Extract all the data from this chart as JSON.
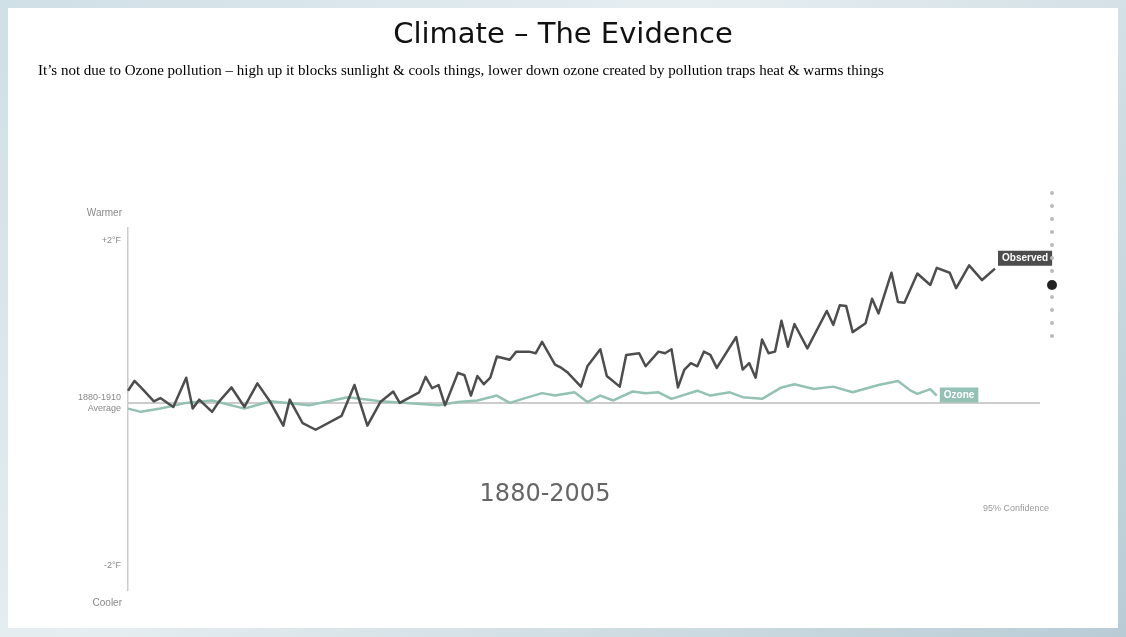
{
  "chart_data": {
    "type": "line",
    "title": "Climate – The Evidence",
    "subtitle": "It’s not due to Ozone pollution – high up it blocks sunlight & cools things, lower down ozone created by pollution traps heat & warms things",
    "ylabel": "Warmer",
    "annotations": [
      "1880-2005",
      "95% Confidence",
      "Cooler"
    ],
    "categories": [
      null,
      null,
      null,
      null,
      null,
      null,
      null,
      null,
      null,
      null,
      null,
      null,
      null,
      null,
      null,
      null,
      null,
      null,
      null,
      null,
      null,
      null,
      null,
      null,
      null,
      null,
      null,
      null,
      null,
      null,
      null,
      null,
      null,
      null,
      null,
      null,
      null,
      null,
      null,
      null,
      null,
      null,
      null,
      null,
      null,
      null,
      null,
      null,
      null,
      null,
      null,
      null,
      null,
      null,
      null,
      null,
      null,
      null,
      null,
      null,
      null,
      null,
      null,
      null,
      null,
      null,
      null,
      null,
      null,
      null,
      null,
      null,
      null,
      null,
      null,
      null,
      null,
      null,
      null,
      null,
      null,
      null,
      null,
      null,
      null,
      null,
      null,
      null,
      null,
      null,
      null,
      null,
      null,
      null,
      null,
      null,
      null,
      null,
      null,
      null,
      null,
      null,
      null,
      null,
      null,
      null,
      null,
      null,
      null,
      null,
      null,
      null,
      null,
      null,
      null,
      null,
      null,
      null,
      null,
      null,
      null,
      null,
      null,
      null,
      null,
      null,
      null,
      null,
      null,
      null,
      null,
      null,
      null,
      null,
      null
    ],
    "ylim": [
      -2.3,
      2.15
    ],
    "yticks": [
      {
        "value": 2,
        "label": "+2°F"
      },
      {
        "value": 0,
        "label": "1880-1910 Average"
      },
      {
        "value": -2,
        "label": "-2°F"
      }
    ],
    "tick_labels": "y",
    "grid": false,
    "legend": "right",
    "marker": "none",
    "line_style": "solid",
    "ref_lines": [
      {
        "axis": "y",
        "value": 0,
        "label": null,
        "color": "#bbbbbb"
      }
    ],
    "series": [
      {
        "name": "Observed",
        "color": "#4d4d4d",
        "values": [
          0.15,
          0.27,
          0.19,
          null,
          0.02,
          0.06,
          null,
          -0.05,
          null,
          0.31,
          -0.07,
          0.04,
          null,
          -0.11,
          0.01,
          null,
          0.19,
          null,
          -0.05,
          null,
          0.24,
          null,
          0.01,
          null,
          -0.28,
          0.04,
          null,
          -0.25,
          null,
          -0.33,
          null,
          null,
          null,
          -0.16,
          null,
          0.22,
          null,
          -0.28,
          null,
          0.01,
          null,
          0.14,
          0,
          null,
          null,
          0.13,
          0.32,
          0.18,
          0.22,
          -0.03,
          null,
          0.37,
          0.34,
          0.09,
          0.33,
          0.23,
          0.31,
          0.57,
          null,
          0.53,
          0.63,
          null,
          0.63,
          0.61,
          0.75,
          null,
          0.47,
          0.43,
          0.37,
          null,
          0.2,
          0.45,
          null,
          0.66,
          0.33,
          null,
          0.2,
          0.59,
          null,
          0.61,
          0.45,
          null,
          0.63,
          0.61,
          0.66,
          0.19,
          0.41,
          0.49,
          0.45,
          0.63,
          0.59,
          0.43,
          null,
          null,
          0.81,
          0.41,
          0.49,
          0.31,
          0.78,
          0.61,
          0.63,
          1.01,
          0.69,
          0.97,
          null,
          0.67,
          null,
          null,
          1.13,
          0.96,
          1.2,
          1.19,
          0.87,
          null,
          0.98,
          1.28,
          1.1,
          null,
          1.6,
          1.24,
          1.23,
          null,
          1.59,
          null,
          1.45,
          1.66,
          null,
          1.6,
          1.41,
          null,
          1.69,
          null,
          1.51,
          null,
          1.65
        ]
      },
      {
        "name": "Ozone",
        "color": "#93c2b4",
        "values": [
          -0.07,
          null,
          -0.11,
          null,
          null,
          -0.07,
          null,
          null,
          null,
          0,
          null,
          null,
          null,
          0.03,
          null,
          null,
          null,
          null,
          -0.07,
          null,
          null,
          null,
          0.02,
          null,
          null,
          null,
          null,
          null,
          -0.03,
          null,
          null,
          null,
          null,
          null,
          0.07,
          null,
          null,
          null,
          null,
          0.02,
          null,
          null,
          null,
          0,
          null,
          null,
          null,
          null,
          -0.03,
          null,
          null,
          0.01,
          null,
          null,
          0.03,
          null,
          null,
          0.09,
          null,
          0,
          null,
          0.05,
          null,
          null,
          0.12,
          null,
          0.09,
          null,
          null,
          0.13,
          null,
          0.01,
          null,
          0.09,
          null,
          0.03,
          null,
          null,
          0.14,
          null,
          0.12,
          null,
          0.13,
          null,
          0.05,
          null,
          null,
          null,
          0.15,
          null,
          0.09,
          null,
          null,
          0.13,
          null,
          0.07,
          null,
          null,
          0.05,
          null,
          null,
          0.19,
          null,
          0.23,
          null,
          null,
          0.17,
          null,
          null,
          0.2,
          null,
          null,
          0.13,
          null,
          null,
          null,
          0.22,
          null,
          null,
          0.27,
          null,
          0.15,
          0.11,
          null,
          0.17,
          0.09,
          null,
          null,
          null,
          null,
          null,
          null,
          null,
          null,
          null
        ]
      }
    ]
  }
}
